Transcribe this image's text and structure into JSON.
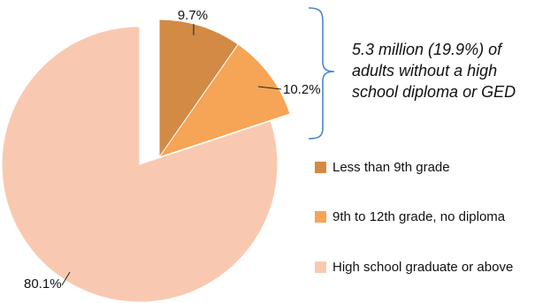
{
  "chart_data": {
    "type": "pie",
    "title": "",
    "slices": [
      {
        "label": "Less than 9th grade",
        "value": 9.7,
        "value_label": "9.7%",
        "color": "#D38A45",
        "exploded": true
      },
      {
        "label": "9th to 12th grade, no diploma",
        "value": 10.2,
        "value_label": "10.2%",
        "color": "#F6A455",
        "exploded": true
      },
      {
        "label": "High school graduate or above",
        "value": 80.1,
        "value_label": "80.1%",
        "color": "#F8C9B0",
        "exploded": false
      }
    ],
    "legend_placement": "right",
    "annotation": {
      "text": "5.3 million (19.9%) of adults without a high school diploma or GED",
      "bracket_color": "#4A86C8"
    }
  }
}
